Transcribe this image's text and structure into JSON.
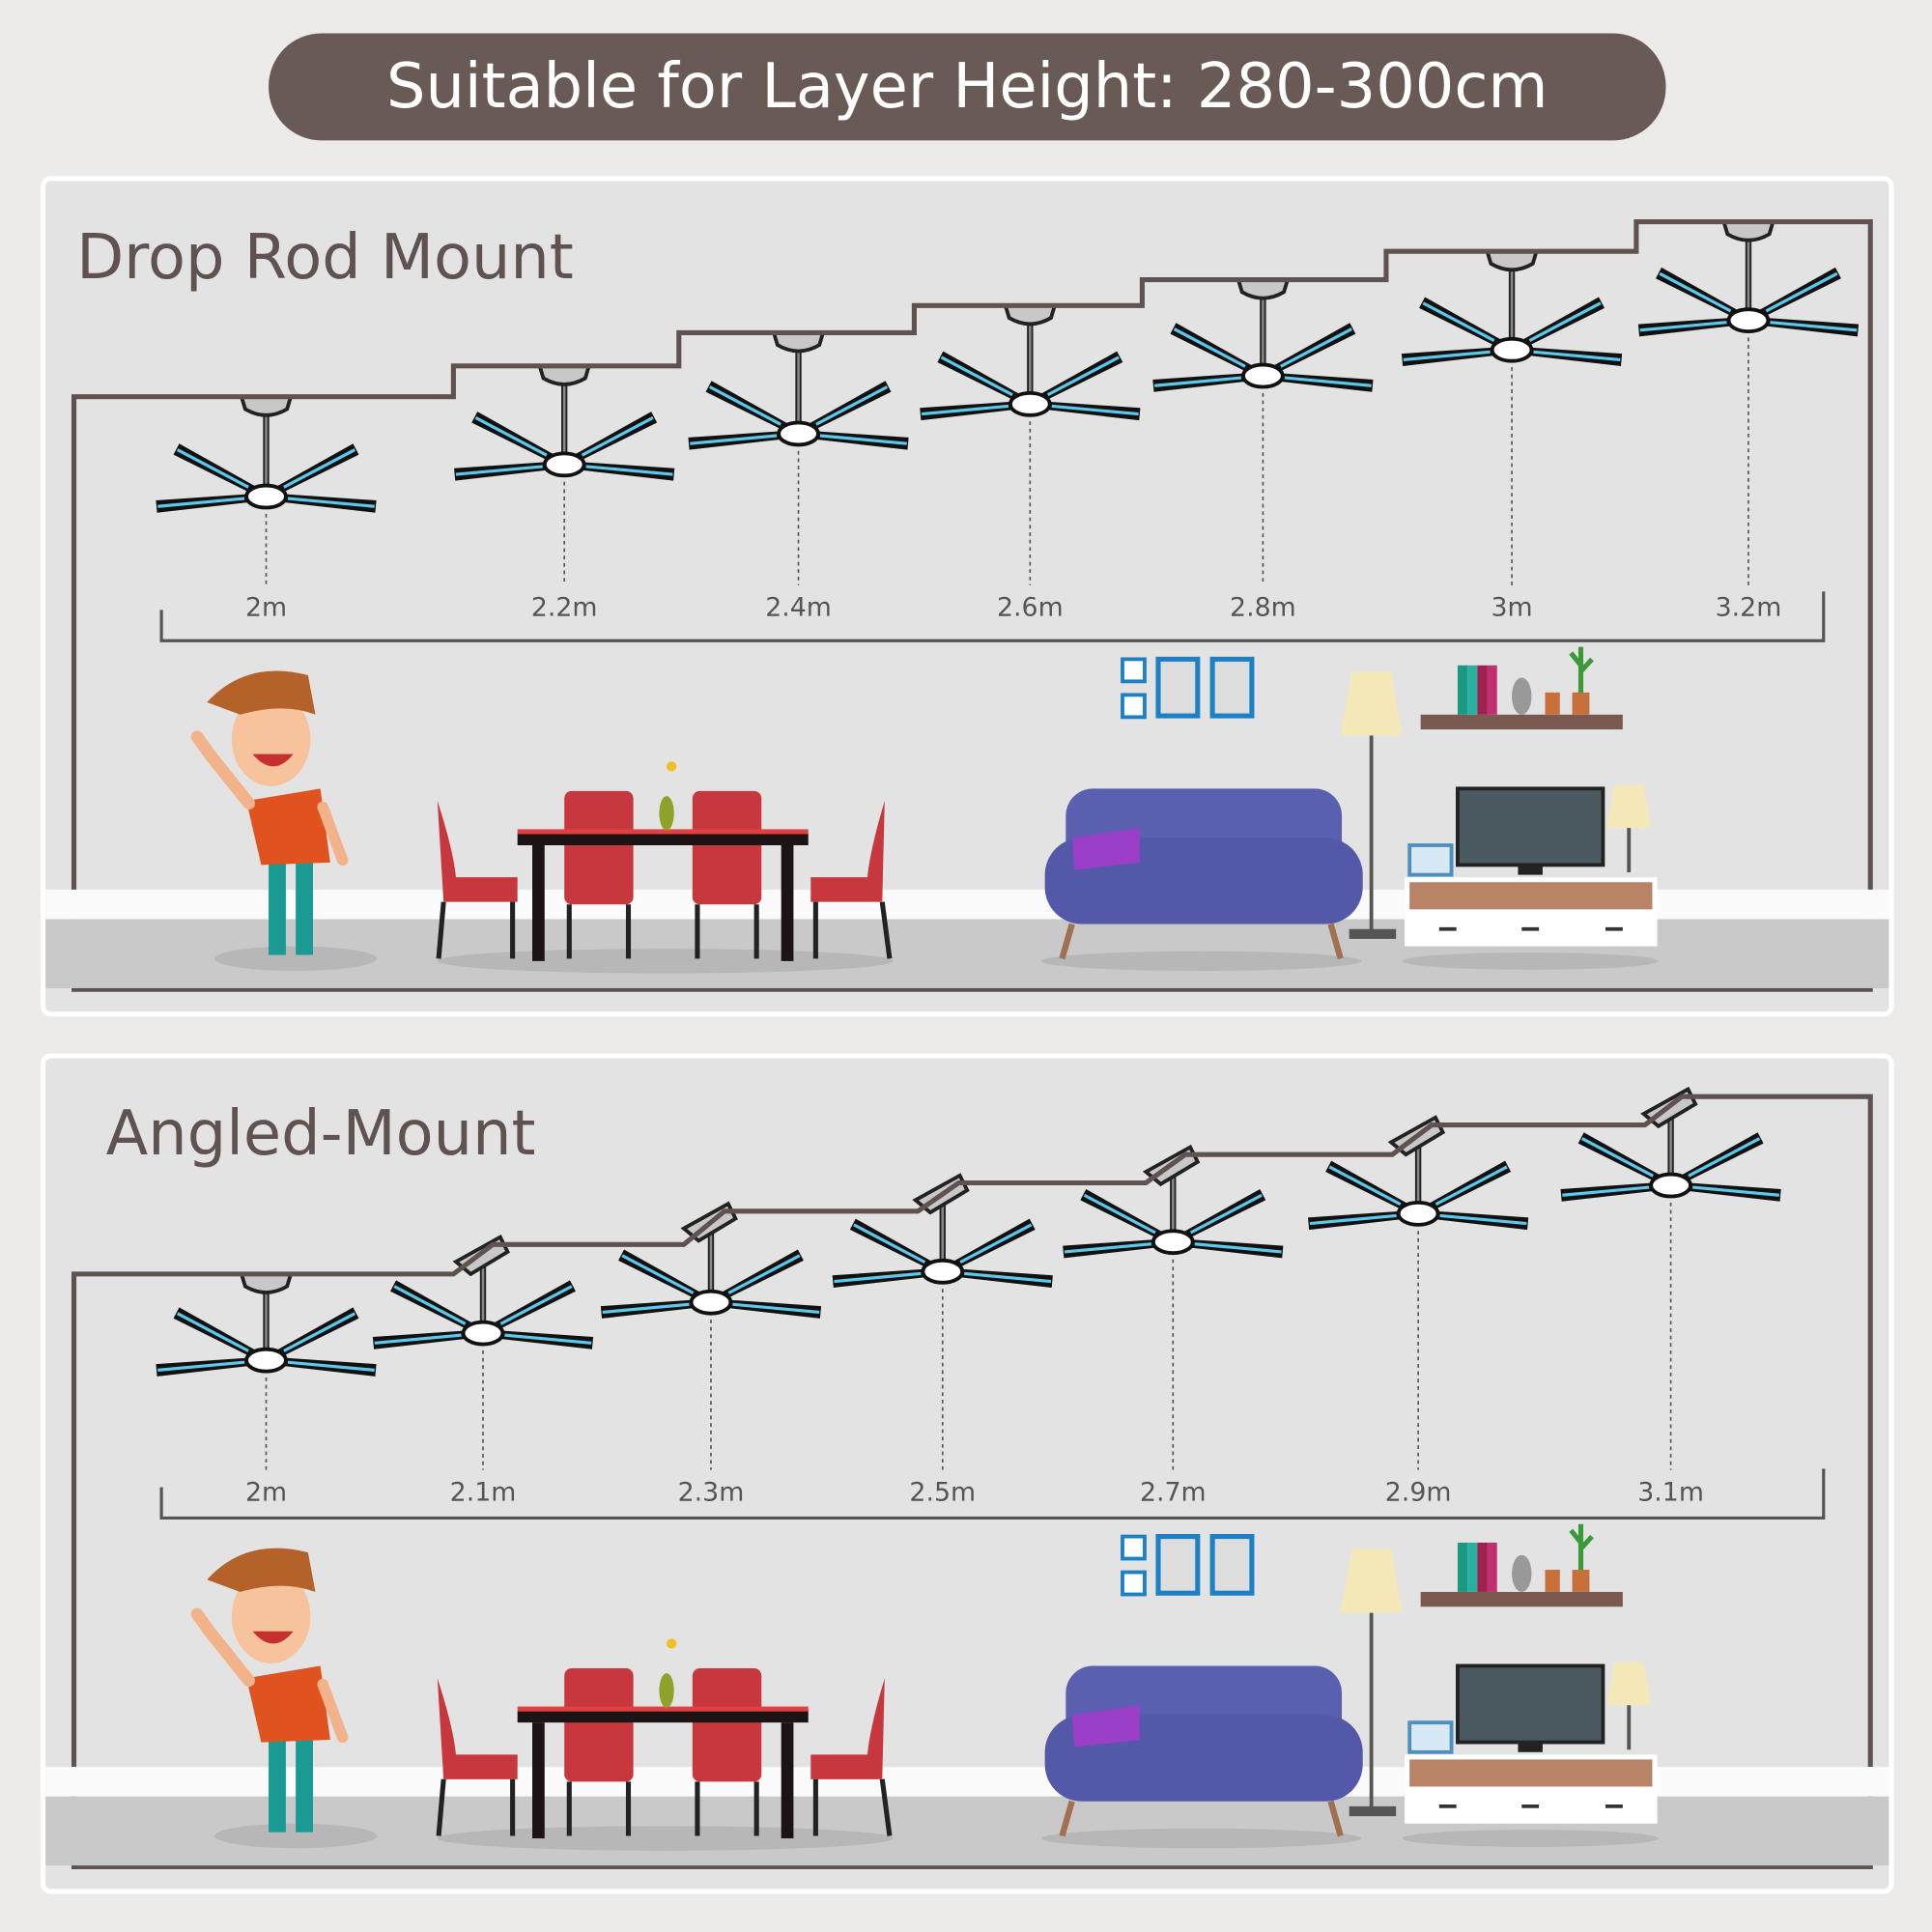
{
  "header": {
    "title": "Suitable for Layer Height: 280-300cm"
  },
  "colors": {
    "banner": "#695a56",
    "frame": "#5f5250",
    "blade_accent": "#5bc8ec",
    "sofa": "#5a5fb0",
    "chair": "#c6383d"
  },
  "panels": [
    {
      "title": "Drop Rod Mount",
      "mount": "drop-rod",
      "heights": [
        "2m",
        "2.2m",
        "2.4m",
        "2.6m",
        "2.8m",
        "3m",
        "3.2m"
      ]
    },
    {
      "title": "Angled-Mount",
      "mount": "angled",
      "heights": [
        "2m",
        "2.1m",
        "2.3m",
        "2.5m",
        "2.7m",
        "2.9m",
        "3.1m"
      ]
    }
  ]
}
